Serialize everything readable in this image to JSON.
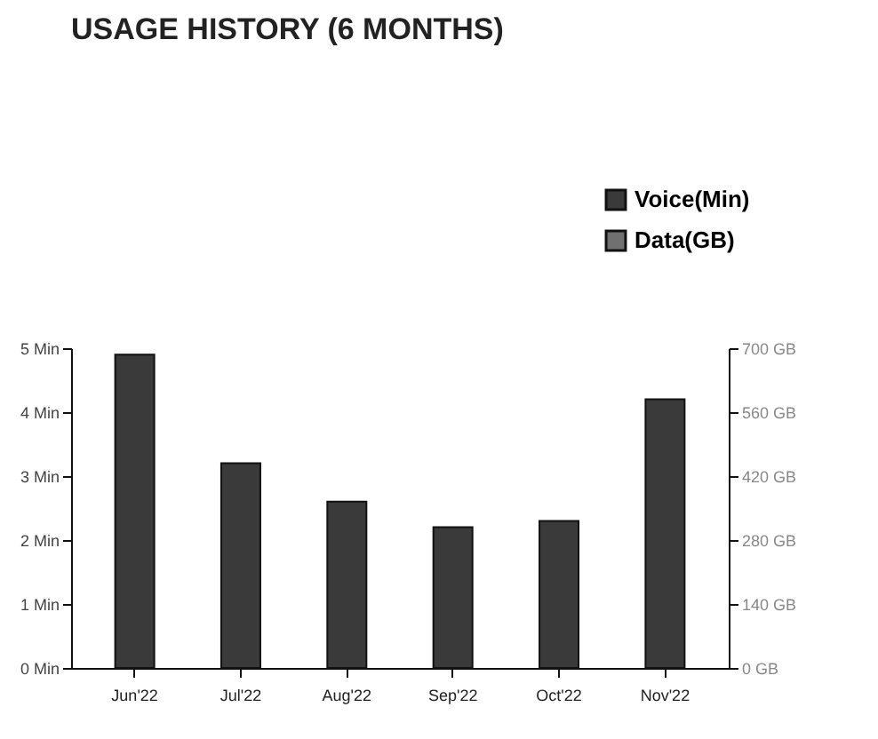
{
  "chart_data": {
    "type": "bar",
    "title": "USAGE HISTORY (6 MONTHS)",
    "categories": [
      "Jun'22",
      "Jul'22",
      "Aug'22",
      "Sep'22",
      "Oct'22",
      "Nov'22"
    ],
    "series": [
      {
        "name": "Voice(Min)",
        "color": "#3a3a3a",
        "values": [
          4.9,
          3.2,
          2.6,
          2.2,
          2.3,
          4.2
        ]
      },
      {
        "name": "Data(GB)",
        "color": "#707070",
        "axis": "y2",
        "values": [
          null,
          null,
          null,
          null,
          null,
          null
        ]
      }
    ],
    "ylim": [
      0,
      5
    ],
    "yticks": [
      {
        "value": 0,
        "label": "0 Min"
      },
      {
        "value": 1,
        "label": "1 Min"
      },
      {
        "value": 2,
        "label": "2 Min"
      },
      {
        "value": 3,
        "label": "3 Min"
      },
      {
        "value": 4,
        "label": "4 Min"
      },
      {
        "value": 5,
        "label": "5 Min"
      }
    ],
    "y2lim": [
      0,
      700
    ],
    "y2ticks": [
      {
        "value": 0,
        "label": "0 GB"
      },
      {
        "value": 140,
        "label": "140 GB"
      },
      {
        "value": 280,
        "label": "280 GB"
      },
      {
        "value": 420,
        "label": "420 GB"
      },
      {
        "value": 560,
        "label": "560 GB"
      },
      {
        "value": 700,
        "label": "700 GB"
      }
    ],
    "legend": "top right",
    "grid": false
  }
}
